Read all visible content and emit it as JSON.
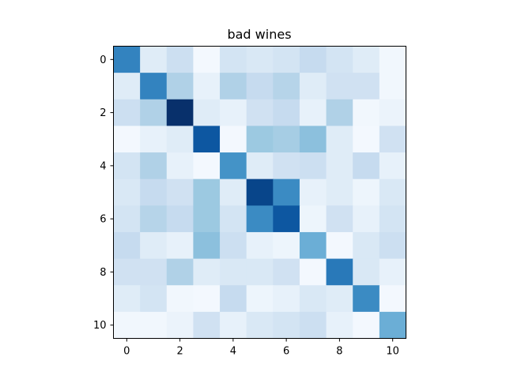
{
  "chart_data": {
    "type": "heatmap",
    "title": "bad wines",
    "xlabel": "",
    "ylabel": "",
    "colormap": "Blues",
    "x_ticks": [
      "0",
      "2",
      "4",
      "6",
      "8",
      "10"
    ],
    "y_ticks": [
      "0",
      "2",
      "4",
      "6",
      "8",
      "10"
    ],
    "grid": false,
    "rows": 11,
    "cols": 11,
    "values": [
      [
        0.68,
        0.12,
        0.22,
        0.02,
        0.18,
        0.15,
        0.18,
        0.25,
        0.18,
        0.12,
        0.03
      ],
      [
        0.12,
        0.68,
        0.32,
        0.08,
        0.32,
        0.25,
        0.3,
        0.12,
        0.2,
        0.2,
        0.03
      ],
      [
        0.22,
        0.32,
        1.0,
        0.12,
        0.08,
        0.2,
        0.25,
        0.08,
        0.32,
        0.03,
        0.06
      ],
      [
        0.02,
        0.08,
        0.12,
        0.85,
        0.02,
        0.38,
        0.35,
        0.42,
        0.12,
        0.02,
        0.2
      ],
      [
        0.18,
        0.32,
        0.08,
        0.02,
        0.62,
        0.12,
        0.2,
        0.22,
        0.12,
        0.25,
        0.08
      ],
      [
        0.15,
        0.25,
        0.2,
        0.38,
        0.12,
        0.92,
        0.65,
        0.08,
        0.12,
        0.05,
        0.15
      ],
      [
        0.18,
        0.3,
        0.25,
        0.38,
        0.18,
        0.65,
        0.85,
        0.05,
        0.2,
        0.08,
        0.18
      ],
      [
        0.25,
        0.12,
        0.08,
        0.42,
        0.22,
        0.08,
        0.05,
        0.5,
        0.02,
        0.15,
        0.22
      ],
      [
        0.2,
        0.2,
        0.32,
        0.12,
        0.15,
        0.15,
        0.2,
        0.02,
        0.72,
        0.15,
        0.08
      ],
      [
        0.12,
        0.18,
        0.03,
        0.02,
        0.25,
        0.05,
        0.08,
        0.15,
        0.12,
        0.65,
        0.02
      ],
      [
        0.03,
        0.03,
        0.06,
        0.2,
        0.08,
        0.15,
        0.18,
        0.22,
        0.08,
        0.02,
        0.5
      ]
    ]
  }
}
